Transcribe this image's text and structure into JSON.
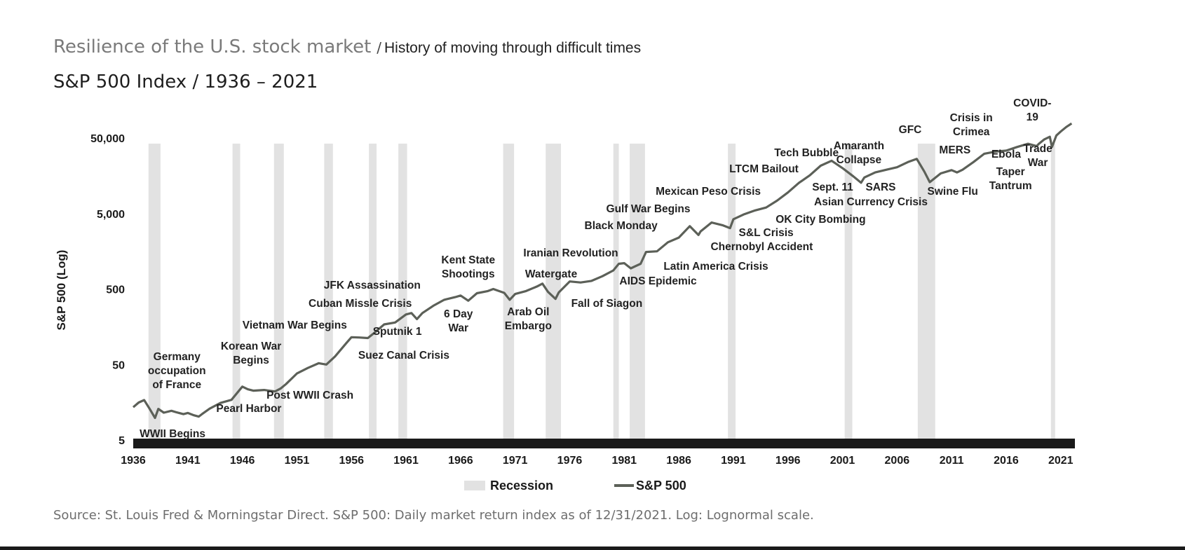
{
  "header": {
    "title": "Resilience of the U.S. stock market",
    "separator": "/",
    "title_suffix": "History of moving through difficult times",
    "subtitle": "S&P 500 Index / 1936 – 2021"
  },
  "footer": {
    "source": "Source: St. Louis Fred & Morningstar Direct. S&P 500: Daily market return index as of 12/31/2021. Log: Lognormal scale."
  },
  "colors": {
    "line": "#5c6058",
    "recession": "#e2e2e2",
    "axis_band": "#1a1a1a",
    "text": "#222222"
  },
  "chart_data": {
    "type": "line",
    "scale": "log",
    "xlabel": "",
    "ylabel": "S&P 500 (Log)",
    "xlim": [
      1936,
      2022.3
    ],
    "ylim": [
      5,
      100000
    ],
    "x_ticks": [
      1936,
      1941,
      1946,
      1951,
      1956,
      1961,
      1966,
      1971,
      1976,
      1981,
      1986,
      1991,
      1996,
      2001,
      2006,
      2011,
      2016,
      2021
    ],
    "x_tick_labels": [
      "1936",
      "1941",
      "1946",
      "1951",
      "1956",
      "1961",
      "1966",
      "1971",
      "1976",
      "1981",
      "1986",
      "1991",
      "1996",
      "2001",
      "2006",
      "2011",
      "2016",
      "2021"
    ],
    "y_ticks": [
      5,
      50,
      500,
      5000,
      50000
    ],
    "y_tick_labels": [
      "5",
      "50",
      "500",
      "5,000",
      "50,000"
    ],
    "legend": {
      "position": "bottom-center",
      "items": [
        {
          "label": "Recession",
          "kind": "band"
        },
        {
          "label": "S&P 500",
          "kind": "line"
        }
      ]
    },
    "series": [
      {
        "name": "S&P 500",
        "x": [
          1936.0,
          1936.5,
          1937.0,
          1937.5,
          1938.0,
          1938.3,
          1938.8,
          1939.5,
          1940.0,
          1940.6,
          1941.0,
          1941.5,
          1942.0,
          1942.3,
          1943.0,
          1944.0,
          1945.0,
          1946.0,
          1946.5,
          1947.0,
          1948.0,
          1949.0,
          1949.5,
          1950.0,
          1951.0,
          1952.0,
          1953.0,
          1953.7,
          1954.5,
          1955.5,
          1956.0,
          1956.7,
          1957.5,
          1958.0,
          1959.0,
          1960.0,
          1961.0,
          1961.5,
          1962.0,
          1962.5,
          1963.5,
          1964.5,
          1965.5,
          1966.0,
          1966.7,
          1967.5,
          1968.5,
          1969.0,
          1970.0,
          1970.5,
          1971.0,
          1972.0,
          1973.0,
          1973.5,
          1974.0,
          1974.7,
          1975.0,
          1976.0,
          1977.0,
          1978.0,
          1979.0,
          1980.0,
          1980.5,
          1981.0,
          1981.6,
          1982.5,
          1983.0,
          1984.0,
          1985.0,
          1986.0,
          1987.0,
          1987.8,
          1988.0,
          1989.0,
          1990.0,
          1990.7,
          1991.0,
          1992.0,
          1993.0,
          1994.0,
          1995.0,
          1996.0,
          1997.0,
          1998.0,
          1999.0,
          2000.0,
          2001.0,
          2002.0,
          2002.7,
          2003.0,
          2004.0,
          2005.0,
          2006.0,
          2007.0,
          2007.8,
          2008.5,
          2009.0,
          2010.0,
          2011.0,
          2011.5,
          2012.0,
          2013.0,
          2014.0,
          2015.0,
          2016.0,
          2017.0,
          2018.0,
          2018.8,
          2019.0,
          2019.5,
          2020.0,
          2020.2,
          2020.6,
          2021.0,
          2021.5,
          2022.0
        ],
        "values": [
          13.6,
          15.7,
          16.9,
          13.0,
          9.8,
          12.9,
          11.5,
          12.2,
          11.6,
          11.0,
          11.4,
          10.7,
          10.2,
          11.0,
          13.0,
          15.5,
          17.0,
          25.5,
          23.5,
          22.5,
          23.0,
          22.0,
          24.0,
          27.5,
          38.0,
          45.0,
          52.0,
          50.0,
          64.0,
          95.0,
          115.0,
          114.0,
          112.0,
          128.0,
          170.0,
          180.0,
          230.0,
          240.0,
          200.0,
          240.0,
          300.0,
          360.0,
          390.0,
          410.0,
          350.0,
          440.0,
          470.0,
          500.0,
          445.0,
          360.0,
          430.0,
          470.0,
          540.0,
          590.0,
          460.0,
          370.0,
          450.0,
          630.0,
          610.0,
          640.0,
          740.0,
          880.0,
          1080.0,
          1100.0,
          940.0,
          1080.0,
          1550.0,
          1580.0,
          2080.0,
          2400.0,
          3400.0,
          2600.0,
          2900.0,
          3800.0,
          3500.0,
          3200.0,
          4200.0,
          4900.0,
          5500.0,
          6000.0,
          7400.0,
          9500.0,
          12700.0,
          16000.0,
          21500.0,
          25000.0,
          20000.0,
          15500.0,
          12800.0,
          15000.0,
          17500.0,
          19000.0,
          20500.0,
          24000.0,
          26500.0,
          18000.0,
          13000.0,
          17000.0,
          18800.0,
          17500.0,
          19000.0,
          24000.0,
          31000.0,
          33000.0,
          34000.0,
          38000.0,
          42000.0,
          39000.0,
          42000.0,
          48000.0,
          52000.0,
          38000.0,
          54000.0,
          61000.0,
          70000.0,
          78000.0
        ]
      }
    ],
    "recessions": [
      [
        1937.4,
        1938.5
      ],
      [
        1945.1,
        1945.8
      ],
      [
        1948.9,
        1949.8
      ],
      [
        1953.5,
        1954.3
      ],
      [
        1957.6,
        1958.3
      ],
      [
        1960.3,
        1961.1
      ],
      [
        1969.9,
        1970.9
      ],
      [
        1973.8,
        1975.2
      ],
      [
        1980.0,
        1980.5
      ],
      [
        1981.5,
        1982.9
      ],
      [
        1990.5,
        1991.2
      ],
      [
        2001.2,
        2001.9
      ],
      [
        2007.9,
        2009.5
      ],
      [
        2020.1,
        2020.4
      ]
    ],
    "annotations": [
      {
        "lines": [
          "WWII Begins"
        ],
        "year": 1939.6,
        "align": "center"
      },
      {
        "lines": [
          "Germany",
          "occupation",
          "of France"
        ],
        "year": 1940.0,
        "align": "center"
      },
      {
        "lines": [
          "Pearl Harbor"
        ],
        "year": 1946.6,
        "align": "center"
      },
      {
        "lines": [
          "Korean War",
          "Begins"
        ],
        "year": 1946.8,
        "align": "center"
      },
      {
        "lines": [
          "Post WWII Crash"
        ],
        "year": 1952.2,
        "align": "center"
      },
      {
        "lines": [
          "Vietnam War Begins"
        ],
        "year": 1950.8,
        "align": "center"
      },
      {
        "lines": [
          "Cuban Missle Crisis"
        ],
        "year": 1956.8,
        "align": "center"
      },
      {
        "lines": [
          "JFK Assassination"
        ],
        "year": 1957.9,
        "align": "center"
      },
      {
        "lines": [
          "Suez Canal Crisis"
        ],
        "year": 1960.8,
        "align": "center"
      },
      {
        "lines": [
          "Sputnik 1"
        ],
        "year": 1960.2,
        "align": "center"
      },
      {
        "lines": [
          "6 Day",
          "War"
        ],
        "year": 1965.8,
        "align": "center"
      },
      {
        "lines": [
          "Kent State",
          "Shootings"
        ],
        "year": 1966.7,
        "align": "center"
      },
      {
        "lines": [
          "Arab Oil",
          "Embargo"
        ],
        "year": 1972.2,
        "align": "center"
      },
      {
        "lines": [
          "Iranian Revolution"
        ],
        "year": 1976.1,
        "align": "center"
      },
      {
        "lines": [
          "Watergate"
        ],
        "year": 1974.3,
        "align": "center"
      },
      {
        "lines": [
          "Fall of Siagon"
        ],
        "year": 1979.4,
        "align": "center"
      },
      {
        "lines": [
          "AIDS Epidemic"
        ],
        "year": 1984.1,
        "align": "center"
      },
      {
        "lines": [
          "Latin America Crisis"
        ],
        "year": 1989.4,
        "align": "center"
      },
      {
        "lines": [
          "Black Monday"
        ],
        "year": 1980.7,
        "align": "center"
      },
      {
        "lines": [
          "Gulf War Begins"
        ],
        "year": 1983.2,
        "align": "center"
      },
      {
        "lines": [
          "Mexican Peso Crisis"
        ],
        "year": 1988.7,
        "align": "center"
      },
      {
        "lines": [
          "Chernobyl Accident"
        ],
        "year": 1993.6,
        "align": "center"
      },
      {
        "lines": [
          "S&L Crisis"
        ],
        "year": 1994.0,
        "align": "center"
      },
      {
        "lines": [
          "OK City Bombing"
        ],
        "year": 1999.0,
        "align": "center"
      },
      {
        "lines": [
          "LTCM Bailout"
        ],
        "year": 1993.8,
        "align": "center"
      },
      {
        "lines": [
          "Tech Bubble"
        ],
        "year": 1997.7,
        "align": "center"
      },
      {
        "lines": [
          "Asian Currency Crisis"
        ],
        "year": 2003.6,
        "align": "center"
      },
      {
        "lines": [
          "Sept. 11"
        ],
        "year": 2000.1,
        "align": "center"
      },
      {
        "lines": [
          "SARS"
        ],
        "year": 2004.5,
        "align": "center"
      },
      {
        "lines": [
          "Amaranth",
          "Collapse"
        ],
        "year": 2002.5,
        "align": "center"
      },
      {
        "lines": [
          "GFC"
        ],
        "year": 2007.2,
        "align": "center"
      },
      {
        "lines": [
          "Swine Flu"
        ],
        "year": 2011.1,
        "align": "center"
      },
      {
        "lines": [
          "MERS"
        ],
        "year": 2011.3,
        "align": "center"
      },
      {
        "lines": [
          "Crisis in",
          "Crimea"
        ],
        "year": 2012.8,
        "align": "center"
      },
      {
        "lines": [
          "Ebola"
        ],
        "year": 2016.0,
        "align": "center"
      },
      {
        "lines": [
          "Taper",
          "Tantrum"
        ],
        "year": 2016.4,
        "align": "center"
      },
      {
        "lines": [
          "Trade",
          "War"
        ],
        "year": 2018.9,
        "align": "center"
      },
      {
        "lines": [
          "COVID-",
          "19"
        ],
        "year": 2018.4,
        "align": "center"
      }
    ]
  }
}
